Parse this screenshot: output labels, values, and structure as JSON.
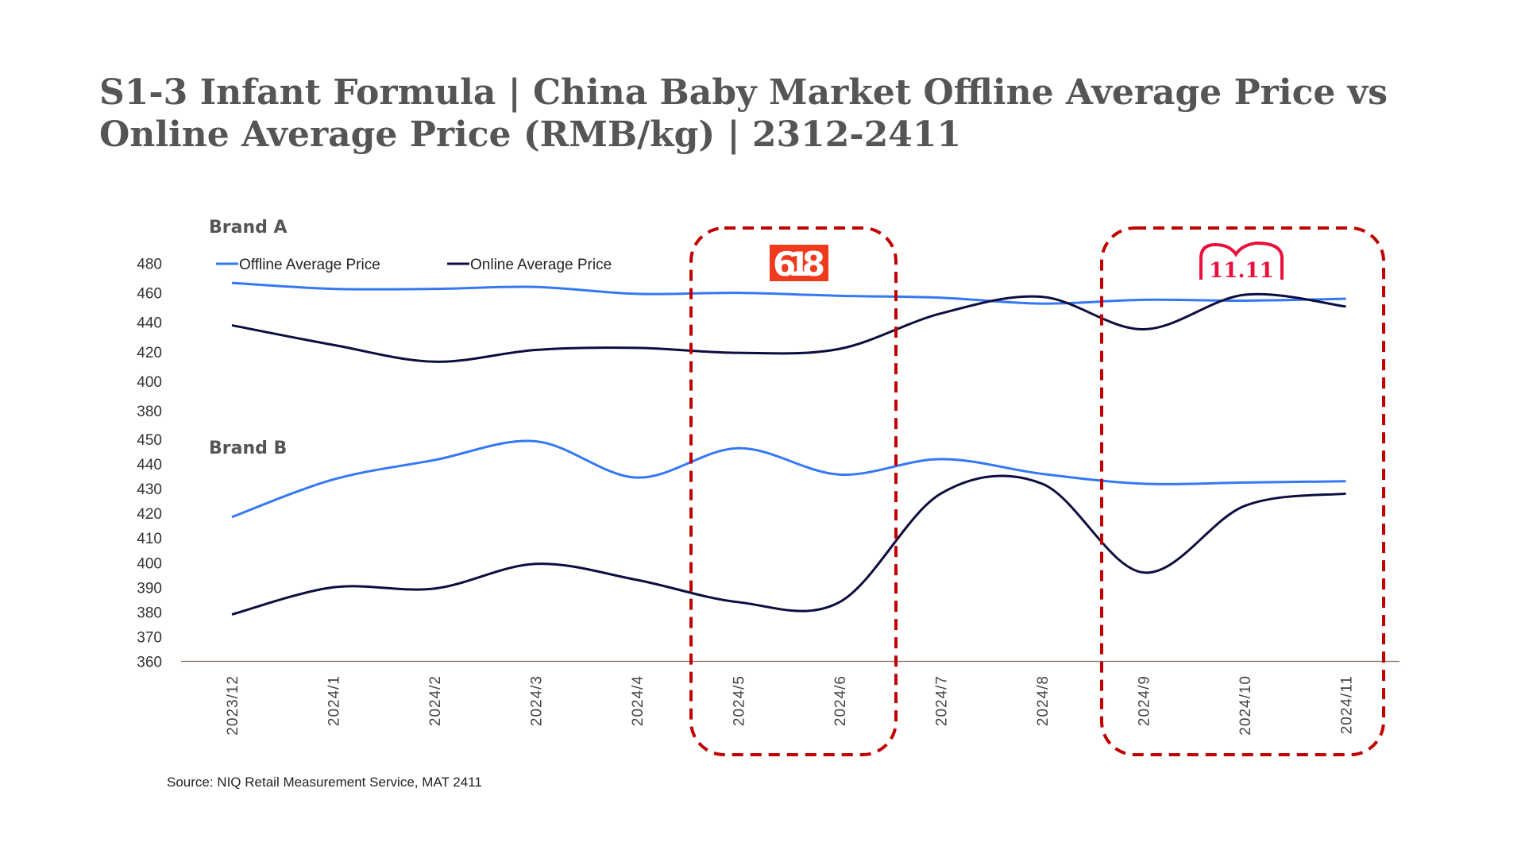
{
  "title": "S1-3 Infant Formula | China Baby Market Offline Average Price vs Online Average Price (RMB/kg) | 2312-2411",
  "source": "Source: NIQ Retail Measurement Service, MAT 2411",
  "colors": {
    "offline": "#3478f6",
    "online": "#0d0d40",
    "highlight": "#c00000",
    "logo_618": "#f03a1e",
    "logo_1111": "#e8103c"
  },
  "icons": {
    "promo_618": "618-logo",
    "promo_1111": "double-eleven-logo"
  },
  "logo_text": {
    "promo_618": "618",
    "promo_1111": "11.11"
  },
  "chart_data": [
    {
      "type": "line",
      "title": "Brand A",
      "categories": [
        "2023/12",
        "2024/1",
        "2024/2",
        "2024/3",
        "2024/4",
        "2024/5",
        "2024/6",
        "2024/7",
        "2024/8",
        "2024/9",
        "2024/10",
        "2024/11"
      ],
      "yticks": [
        480,
        460,
        440,
        420,
        400,
        380
      ],
      "ylim": [
        380,
        480
      ],
      "legend": "top-left",
      "series": [
        {
          "name": "Offline Average Price",
          "values": [
            466.7,
            462.7,
            462.7,
            464,
            459.3,
            460,
            458,
            456.7,
            452.7,
            455.3,
            454.7,
            456
          ]
        },
        {
          "name": "Online Average Price",
          "values": [
            438,
            424.7,
            413.3,
            421.3,
            422.7,
            419.3,
            422,
            446,
            457.3,
            435.3,
            458.7,
            450.7
          ]
        }
      ]
    },
    {
      "type": "line",
      "title": "Brand B",
      "categories": [
        "2023/12",
        "2024/1",
        "2024/2",
        "2024/3",
        "2024/4",
        "2024/5",
        "2024/6",
        "2024/7",
        "2024/8",
        "2024/9",
        "2024/10",
        "2024/11"
      ],
      "yticks": [
        450,
        440,
        430,
        420,
        410,
        400,
        390,
        380,
        370,
        360
      ],
      "ylim": [
        360,
        450
      ],
      "series": [
        {
          "name": "Offline Average Price",
          "values": [
            418.5,
            433.7,
            441.6,
            449.2,
            434.5,
            446.4,
            435.7,
            442,
            436,
            432,
            432.5,
            433
          ]
        },
        {
          "name": "Online Average Price",
          "values": [
            379,
            390,
            389.5,
            399.5,
            393,
            384,
            384,
            428,
            432,
            396,
            423,
            428
          ]
        }
      ]
    }
  ],
  "highlights": [
    {
      "label": "618",
      "from": "2024/5",
      "to": "2024/6"
    },
    {
      "label": "11.11",
      "from": "2024/9",
      "to": "2024/11"
    }
  ]
}
